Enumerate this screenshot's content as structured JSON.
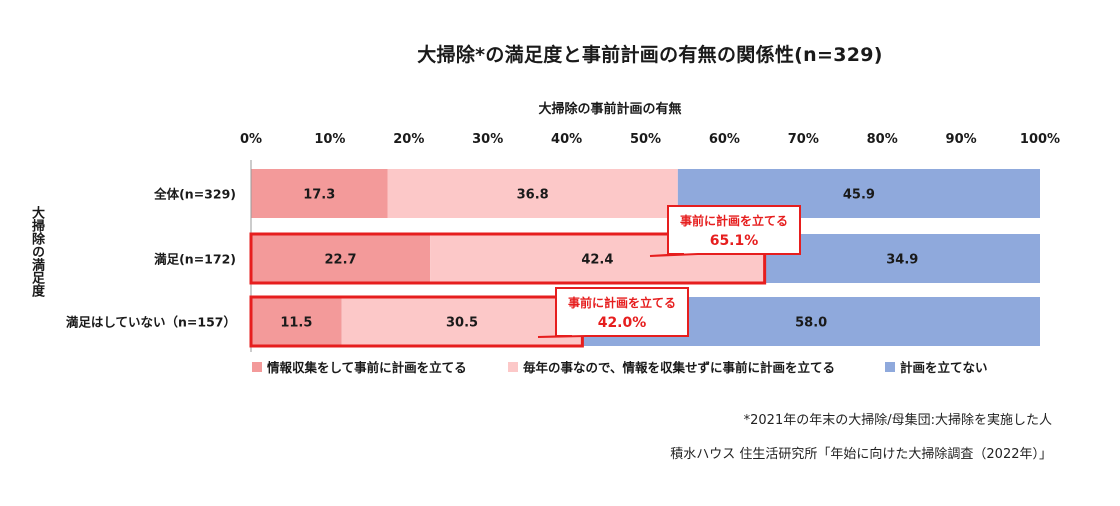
{
  "chart_data": {
    "type": "bar",
    "orientation": "horizontal",
    "stacked": true,
    "title": "大掃除*の満足度と事前計画の有無の関係性(n=329)",
    "xlabel": "大掃除の事前計画の有無",
    "ylabel": "大掃除の満足度",
    "xlim": [
      0,
      100
    ],
    "x_ticks": [
      "0%",
      "10%",
      "20%",
      "30%",
      "40%",
      "50%",
      "60%",
      "70%",
      "80%",
      "90%",
      "100%"
    ],
    "categories": [
      "全体(n=329)",
      "満足(n=172)",
      "満足はしていない（n=157）"
    ],
    "series": [
      {
        "name": "情報収集をして事前に計画を立てる",
        "color": "#f39a9a",
        "values": [
          17.3,
          22.7,
          11.5
        ],
        "labels": [
          "17.3",
          "22.7",
          "11.5"
        ]
      },
      {
        "name": "毎年の事なので、情報を収集せずに事前に計画を立てる",
        "color": "#fcc8c8",
        "values": [
          36.8,
          42.4,
          30.5
        ],
        "labels": [
          "36.8",
          "42.4",
          "30.5"
        ]
      },
      {
        "name": "計画を立てない",
        "color": "#8fa9dc",
        "values": [
          45.9,
          34.9,
          58.0
        ],
        "labels": [
          "45.9",
          "34.9",
          "58.0"
        ]
      }
    ],
    "legend_position": "bottom",
    "grid": false,
    "highlight_color": "#e61e1e",
    "highlights": [
      {
        "category_index": 1,
        "from": 0,
        "to": 65.1,
        "label": "事前に計画を立てる",
        "value": "65.1%"
      },
      {
        "category_index": 2,
        "from": 0,
        "to": 42.0,
        "label": "事前に計画を立てる",
        "value": "42.0%"
      }
    ]
  },
  "notes": [
    "*2021年の年末の大掃除/母集団:大掃除を実施した人",
    "積水ハウス 住生活研究所「年始に向けた大掃除調査（2022年）」"
  ]
}
